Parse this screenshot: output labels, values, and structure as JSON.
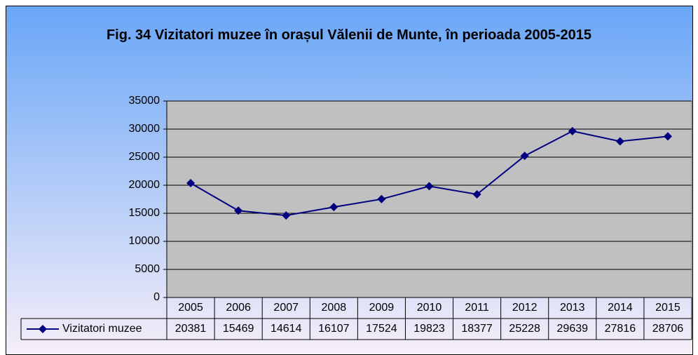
{
  "chart_data": {
    "type": "line",
    "title": "Fig. 34 Vizitatori muzee în orașul Vălenii de Munte, în perioada 2005-2015",
    "categories": [
      "2005",
      "2006",
      "2007",
      "2008",
      "2009",
      "2010",
      "2011",
      "2012",
      "2013",
      "2014",
      "2015"
    ],
    "series": [
      {
        "name": "Vizitatori muzee",
        "color": "#000080",
        "values": [
          20381,
          15469,
          14614,
          16107,
          17524,
          19823,
          18377,
          25228,
          29639,
          27816,
          28706
        ]
      }
    ],
    "ylim": [
      0,
      35000
    ],
    "yticks": [
      0,
      5000,
      10000,
      15000,
      20000,
      25000,
      30000,
      35000
    ],
    "grid": true,
    "data_table": true
  }
}
